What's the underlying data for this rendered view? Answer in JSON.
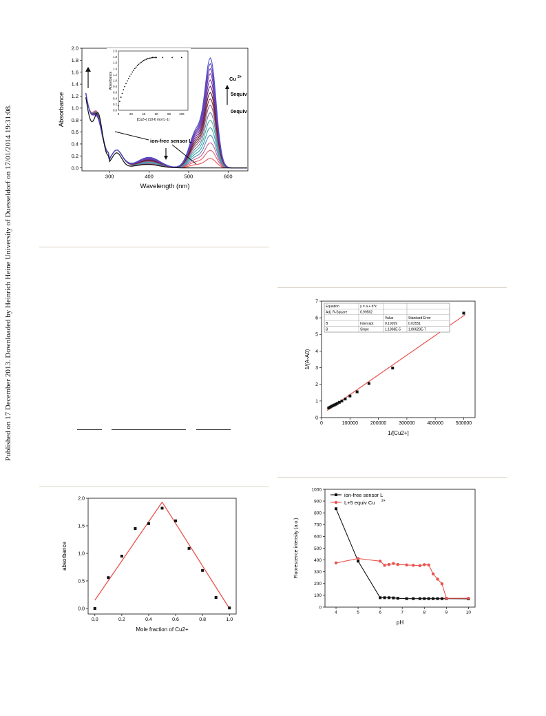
{
  "sidebar_text": "Published on 17 December 2013. Downloaded by Heinrich Heine University of Duesseldorf on 17/01/2014 19:31:08.",
  "chart_data": [
    {
      "id": "uvvis-titration",
      "type": "line",
      "xlabel": "Wavelength (nm)",
      "ylabel": "Absorbance",
      "xlim": [
        230,
        650
      ],
      "ylim": [
        -0.05,
        2.0
      ],
      "xticks": [
        300,
        400,
        500,
        600
      ],
      "yticks": [
        0.0,
        0.2,
        0.4,
        0.6,
        0.8,
        1.0,
        1.2,
        1.4,
        1.6,
        1.8,
        2.0
      ],
      "annotations": [
        "Cu",
        "2+",
        "5equiv",
        "0equiv",
        "ion-free sensor L"
      ],
      "series_colors": [
        "#e8534f",
        "#e0566a",
        "#c85f8c",
        "#5a8ac4",
        "#3aa0a8",
        "#40b0a0",
        "#6d7aa8",
        "#8a6090",
        "#8a2d2d",
        "#5a1f1f",
        "#6b2470",
        "#7030a0",
        "#7a3aa8",
        "#6e40b8",
        "#5a4ac0",
        "#4a50c8"
      ],
      "peak_absorbance": [
        0.15,
        0.28,
        0.4,
        0.52,
        0.64,
        0.76,
        0.88,
        1.0,
        1.1,
        1.2,
        1.3,
        1.4,
        1.5,
        1.58,
        1.66,
        1.75
      ],
      "inset": {
        "type": "scatter",
        "xlabel": "[Cu2+] (10-6 mol L-1)",
        "ylabel": "Absorbance",
        "xlim": [
          0,
          110
        ],
        "ylim": [
          0,
          2.0
        ],
        "xticks": [
          0,
          20,
          40,
          60,
          80,
          100
        ],
        "yticks": [
          0.0,
          0.2,
          0.4,
          0.6,
          0.8,
          1.0,
          1.2,
          1.4,
          1.6,
          1.8,
          2.0
        ],
        "x": [
          0,
          2,
          4,
          6,
          8,
          10,
          12,
          14,
          16,
          18,
          20,
          22,
          24,
          26,
          28,
          30,
          32,
          34,
          36,
          38,
          40,
          42,
          44,
          46,
          48,
          50,
          52,
          54,
          56,
          58,
          60,
          70,
          85,
          100
        ],
        "y": [
          0.15,
          0.3,
          0.44,
          0.57,
          0.69,
          0.8,
          0.9,
          0.99,
          1.07,
          1.15,
          1.22,
          1.29,
          1.35,
          1.41,
          1.46,
          1.51,
          1.55,
          1.59,
          1.62,
          1.65,
          1.68,
          1.7,
          1.72,
          1.74,
          1.75,
          1.76,
          1.77,
          1.78,
          1.78,
          1.78,
          1.78,
          1.78,
          1.78,
          1.78
        ]
      }
    },
    {
      "id": "benesi-hildebrand",
      "type": "scatter",
      "xlabel": "1/[Cu2+]",
      "ylabel": "1/(A-A0)",
      "xlim": [
        0,
        540000
      ],
      "ylim": [
        0,
        7
      ],
      "xticks": [
        0,
        100000,
        200000,
        300000,
        400000,
        500000
      ],
      "yticks": [
        0,
        1,
        2,
        3,
        4,
        5,
        6,
        7
      ],
      "x": [
        25000,
        30000,
        35000,
        40000,
        45000,
        50000,
        55000,
        62500,
        71400,
        83300,
        100000,
        125000,
        166700,
        250000,
        500000
      ],
      "y": [
        0.58,
        0.63,
        0.68,
        0.72,
        0.76,
        0.8,
        0.85,
        0.92,
        1.0,
        1.12,
        1.3,
        1.55,
        2.05,
        2.98,
        6.28
      ],
      "fit": {
        "intercept": 0.19209,
        "slope": 1.1868e-05
      },
      "fit_color": "#e8534f",
      "table": [
        [
          "Equation",
          "y = a + b*x",
          "",
          ""
        ],
        [
          "Adj. R-Square",
          "0.99562",
          "",
          ""
        ],
        [
          "",
          "",
          "Value",
          "Standard Error"
        ],
        [
          "B",
          "Intercept",
          "0.19209",
          "0.02551"
        ],
        [
          "B",
          "Slope",
          "1.1868E-5",
          "1.80629E-7"
        ]
      ]
    },
    {
      "id": "job-plot",
      "type": "scatter",
      "xlabel": "Mole fraction of Cu2+",
      "ylabel": "absorbance",
      "xlim": [
        -0.05,
        1.05
      ],
      "ylim": [
        -0.1,
        2.0
      ],
      "xticks": [
        0.0,
        0.2,
        0.4,
        0.6,
        0.8,
        1.0
      ],
      "yticks": [
        0.0,
        0.5,
        1.0,
        1.5,
        2.0
      ],
      "x": [
        0.0,
        0.1,
        0.2,
        0.3,
        0.4,
        0.5,
        0.6,
        0.7,
        0.8,
        0.9,
        1.0
      ],
      "y": [
        0.0,
        0.56,
        0.95,
        1.45,
        1.54,
        1.82,
        1.59,
        1.09,
        0.69,
        0.2,
        0.01
      ],
      "fit_lines": [
        [
          [
            0.0,
            0.15
          ],
          [
            0.5,
            1.93
          ]
        ],
        [
          [
            0.5,
            1.93
          ],
          [
            1.0,
            0.0
          ]
        ]
      ],
      "fit_color": "#e8534f"
    },
    {
      "id": "ph-fluorescence",
      "type": "line",
      "xlabel": "pH",
      "ylabel": "Fluorescence intensity (a.u.)",
      "xlim": [
        3.5,
        10.3
      ],
      "ylim": [
        0,
        1000
      ],
      "xticks": [
        4,
        5,
        6,
        7,
        8,
        9,
        10
      ],
      "yticks": [
        0,
        100,
        200,
        300,
        400,
        500,
        600,
        700,
        800,
        900,
        1000
      ],
      "series": [
        {
          "name": "ion-free sensor L",
          "color": "#111111",
          "x": [
            4,
            5,
            6,
            6.2,
            6.4,
            6.6,
            6.8,
            7.2,
            7.5,
            7.8,
            8.0,
            8.2,
            8.4,
            8.6,
            8.8,
            9.0,
            10
          ],
          "y": [
            835,
            390,
            80,
            80,
            80,
            78,
            75,
            72,
            72,
            72,
            72,
            72,
            72,
            72,
            72,
            72,
            70
          ]
        },
        {
          "name": "L+5 equiv Cu",
          "color": "#e8534f",
          "x": [
            4,
            5,
            6,
            6.2,
            6.4,
            6.6,
            6.8,
            7.2,
            7.5,
            7.8,
            8.0,
            8.2,
            8.4,
            8.6,
            8.8,
            9.0,
            10
          ],
          "y": [
            375,
            412,
            390,
            355,
            362,
            370,
            362,
            358,
            355,
            352,
            360,
            358,
            282,
            238,
            198,
            75,
            75
          ]
        }
      ],
      "legend_sup": "2+"
    }
  ]
}
